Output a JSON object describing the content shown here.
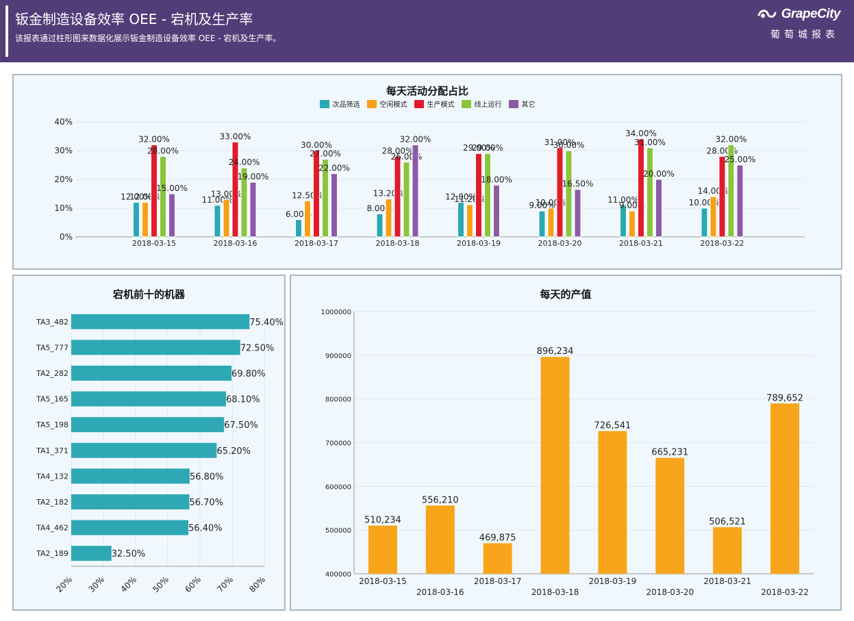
{
  "header": {
    "title": "钣金制造设备效率 OEE - 宕机及生产率",
    "subtitle": "该报表通过柱形图来数据化展示钣金制造设备效率 OEE - 宕机及生产率。",
    "brand_name": "GrapeCity",
    "brand_cn": "葡萄城报表"
  },
  "colors": {
    "header_bg": "#523d78",
    "panel_bg": "#f1f8fd",
    "series": [
      "#2aa8b5",
      "#f6a01a",
      "#e11b2b",
      "#8bc43f",
      "#8d5aa7"
    ],
    "hbar": "#2fa8b5",
    "daily_bar": "#f8a51c"
  },
  "chart_data": [
    {
      "type": "bar",
      "title": "每天活动分配占比",
      "categories": [
        "2018-03-15",
        "2018-03-16",
        "2018-03-17",
        "2018-03-18",
        "2018-03-19",
        "2018-03-20",
        "2018-03-21",
        "2018-03-22"
      ],
      "series": [
        {
          "name": "次品筛选",
          "values": [
            12.0,
            11.0,
            6.0,
            8.0,
            12.0,
            9.0,
            11.0,
            10.0
          ]
        },
        {
          "name": "空闲模式",
          "values": [
            12.0,
            13.0,
            12.5,
            13.2,
            11.2,
            10.0,
            9.0,
            14.0
          ]
        },
        {
          "name": "生产模式",
          "values": [
            32.0,
            33.0,
            30.0,
            28.0,
            29.0,
            31.0,
            34.0,
            28.0
          ]
        },
        {
          "name": "线上运行",
          "values": [
            28.0,
            24.0,
            27.0,
            26.0,
            29.0,
            30.0,
            31.0,
            32.0
          ]
        },
        {
          "name": "其它",
          "values": [
            15.0,
            19.0,
            22.0,
            32.0,
            18.0,
            16.5,
            20.0,
            25.0
          ]
        }
      ],
      "ylim": [
        0,
        40
      ],
      "yticks": [
        "0%",
        "10%",
        "20%",
        "30%",
        "40%"
      ],
      "value_format": "percent_2dp",
      "legend": "top-center",
      "grid": true
    },
    {
      "type": "bar",
      "orientation": "horizontal",
      "title": "宕机前十的机器",
      "categories": [
        "TA3_482",
        "TA5_777",
        "TA2_282",
        "TA5_165",
        "TA5_198",
        "TA1_371",
        "TA4_132",
        "TA2_182",
        "TA4_462",
        "TA2_189"
      ],
      "values": [
        75.4,
        72.5,
        69.8,
        68.1,
        67.5,
        65.2,
        56.8,
        56.7,
        56.4,
        32.5
      ],
      "xlim": [
        20,
        80
      ],
      "xticks": [
        "20%",
        "30%",
        "40%",
        "50%",
        "60%",
        "70%",
        "80%"
      ],
      "value_format": "percent_2dp",
      "grid": true
    },
    {
      "type": "bar",
      "title": "每天的产值",
      "categories": [
        "2018-03-15",
        "2018-03-16",
        "2018-03-17",
        "2018-03-18",
        "2018-03-19",
        "2018-03-20",
        "2018-03-21",
        "2018-03-22"
      ],
      "values": [
        510234,
        556210,
        469875,
        896234,
        726541,
        665231,
        506521,
        789652
      ],
      "ylim": [
        400000,
        1000000
      ],
      "yticks": [
        "400000",
        "500000",
        "600000",
        "700000",
        "800000",
        "900000",
        "1000000"
      ],
      "value_format": "thousands",
      "grid": true
    }
  ]
}
